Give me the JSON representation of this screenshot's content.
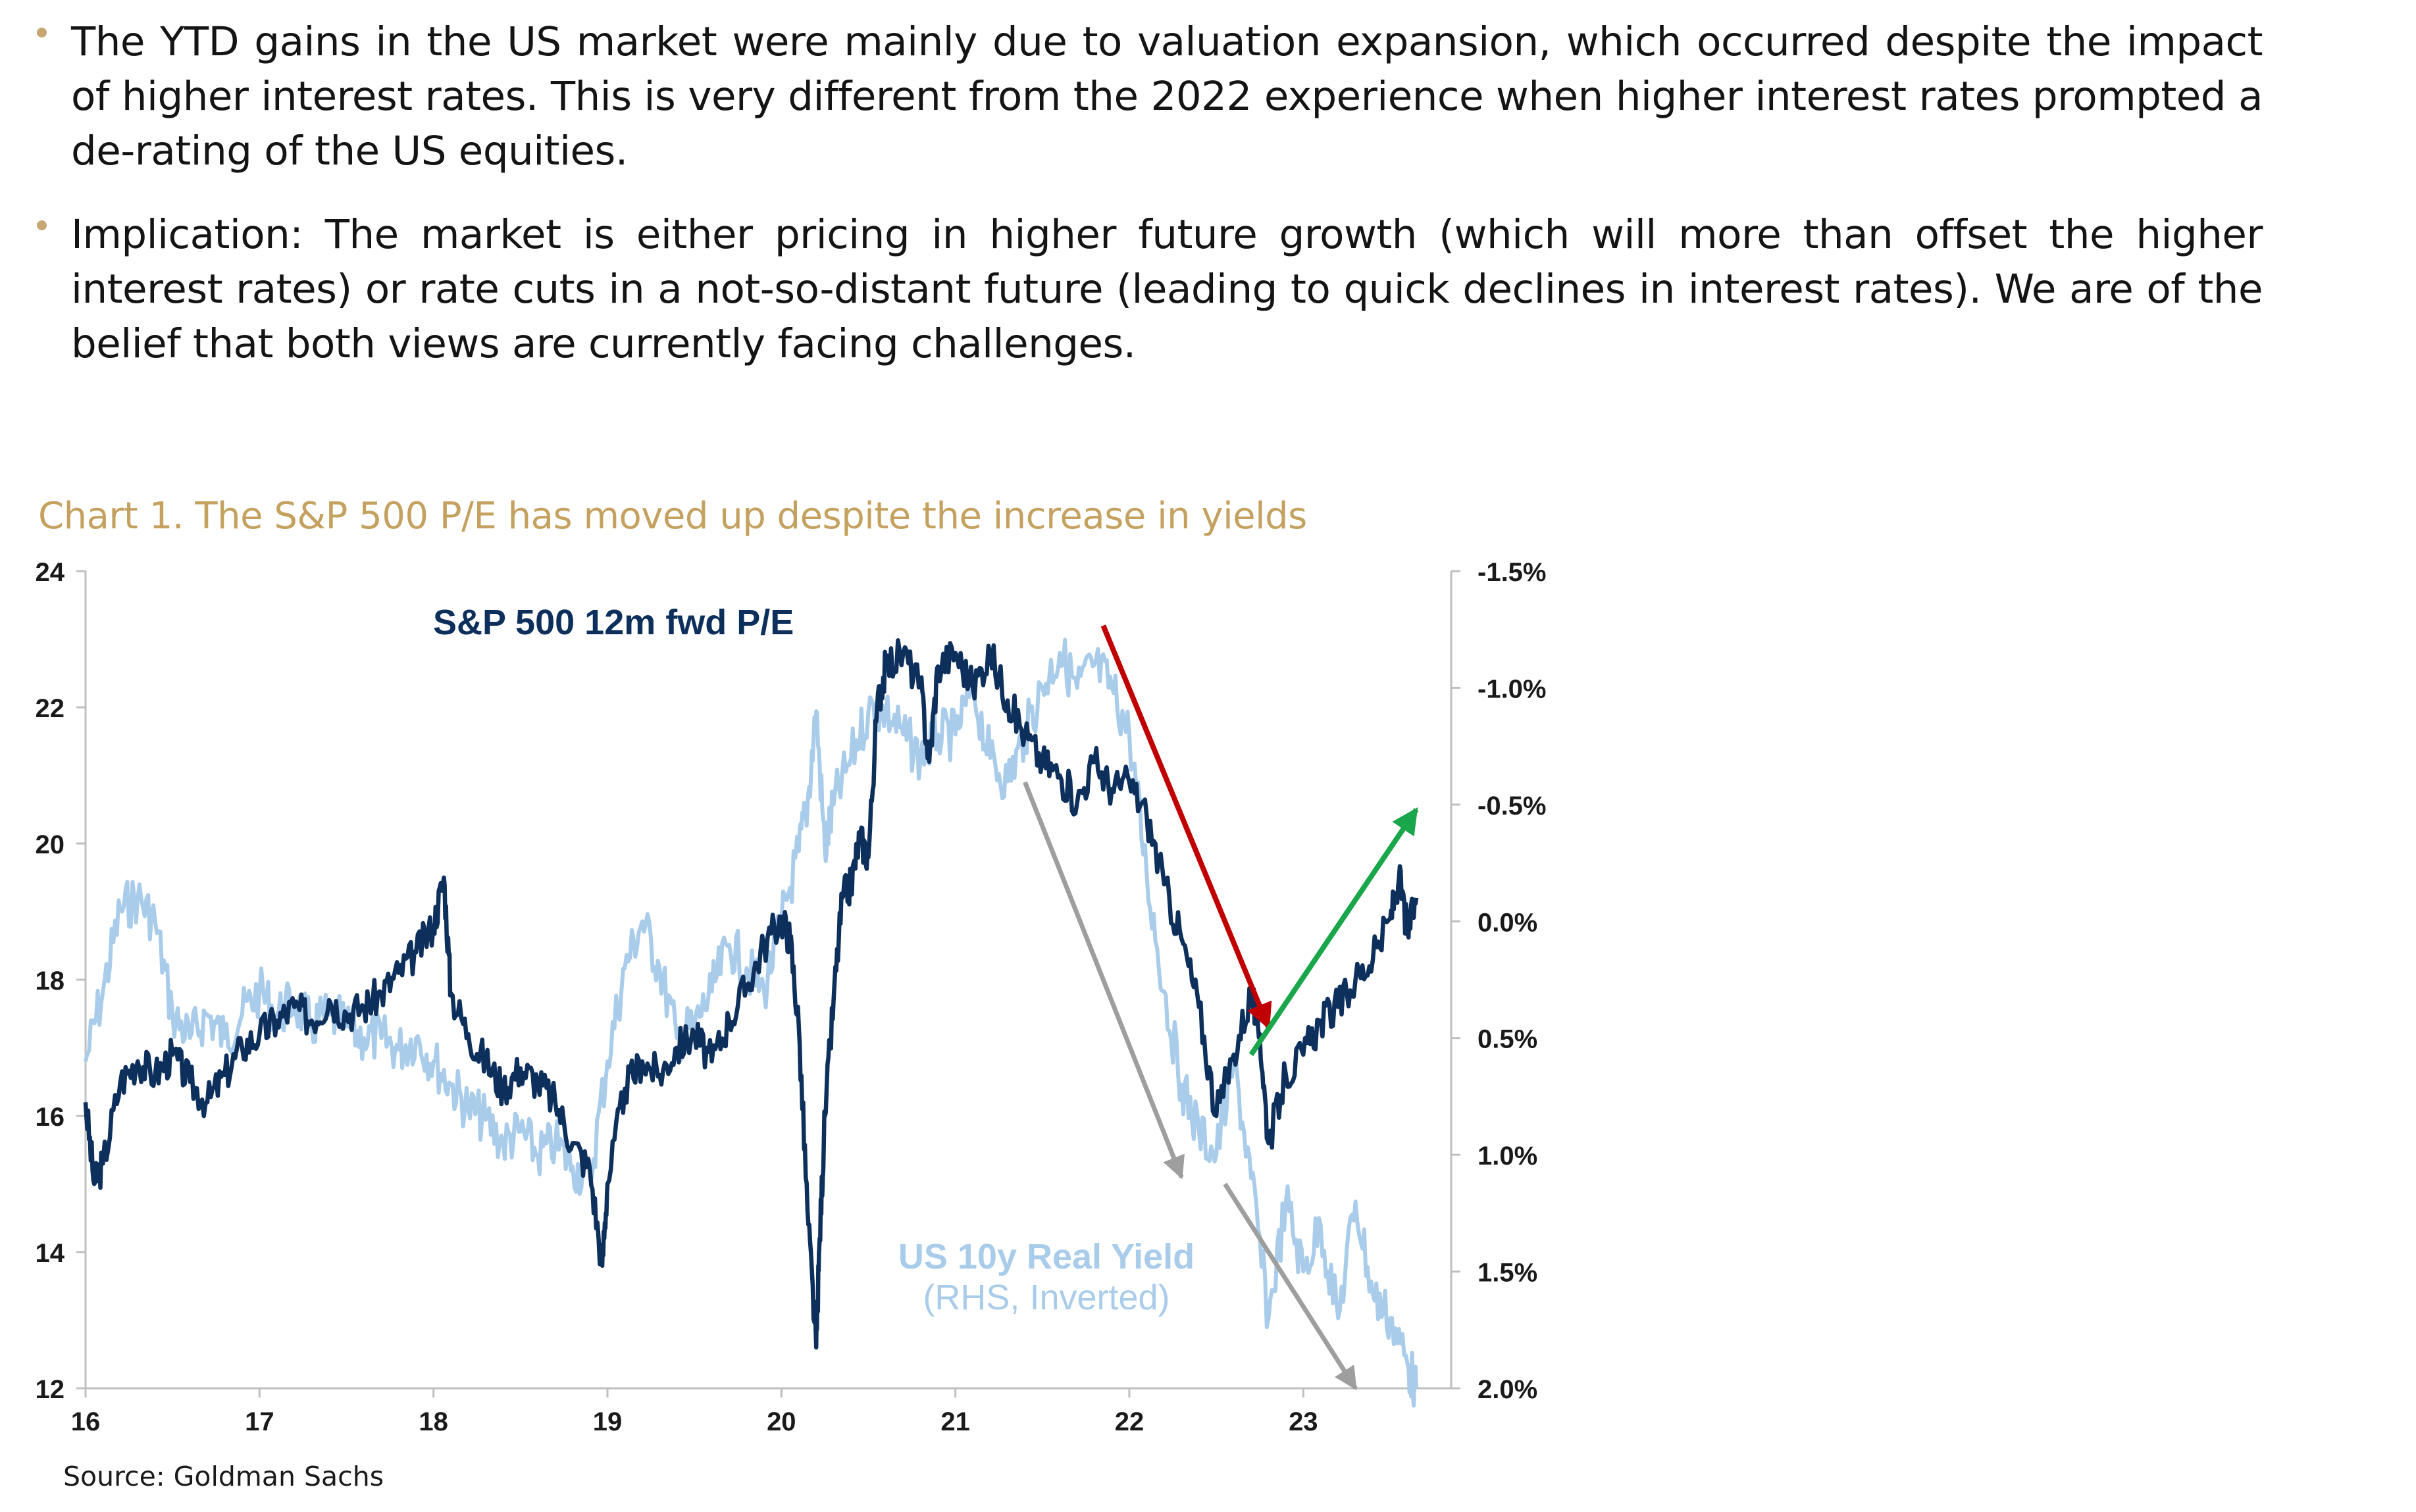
{
  "bullets": [
    "The YTD gains in the US market were mainly due to valuation expansion, which occurred despite the impact of higher interest rates. This is very different from the 2022 experience when higher interest rates prompted a de-rating of the US equities.",
    "Implication: The market is either pricing in higher future growth (which will more than offset the higher interest rates) or rate cuts in a not-so-distant future (leading to quick declines in interest rates). We are of the belief that both views are currently facing challenges."
  ],
  "colors": {
    "bullet": "#c6a772",
    "title": "#c4a15f",
    "pe_series": "#0d2f5c",
    "yield_series": "#a9cceb",
    "arrow_red": "#c00000",
    "arrow_green": "#1aa64a",
    "arrow_gray": "#9e9e9e"
  },
  "source": "Source: Goldman Sachs",
  "chart_data": {
    "type": "line",
    "title": "Chart 1. The S&P 500 P/E has moved up despite the increase in yields",
    "xlabel": "",
    "ylabel_left": "",
    "ylabel_right": "",
    "xlim": [
      16,
      23.85
    ],
    "ylim_left": [
      12,
      24
    ],
    "ylim_right_inverted": [
      2.0,
      -1.5
    ],
    "x_ticks": [
      "16",
      "17",
      "18",
      "19",
      "20",
      "21",
      "22",
      "23"
    ],
    "y_ticks_left": [
      "24",
      "22",
      "20",
      "18",
      "16",
      "14",
      "12"
    ],
    "y_ticks_right": [
      "-1.5%",
      "-1.0%",
      "-0.5%",
      "0.0%",
      "0.5%",
      "1.0%",
      "1.5%",
      "2.0%"
    ],
    "series": [
      {
        "name": "S&P 500 12m fwd P/E",
        "axis": "left",
        "label": "S&P 500 12m fwd P/E",
        "x": [
          16.0,
          16.05,
          16.1,
          16.2,
          16.3,
          16.4,
          16.5,
          16.6,
          16.7,
          16.8,
          16.9,
          17.0,
          17.1,
          17.2,
          17.3,
          17.4,
          17.5,
          17.6,
          17.7,
          17.8,
          17.9,
          18.0,
          18.06,
          18.1,
          18.2,
          18.3,
          18.4,
          18.5,
          18.6,
          18.7,
          18.8,
          18.9,
          18.97,
          19.0,
          19.1,
          19.2,
          19.3,
          19.4,
          19.5,
          19.6,
          19.7,
          19.8,
          19.9,
          20.0,
          20.05,
          20.1,
          20.15,
          20.2,
          20.22,
          20.25,
          20.3,
          20.35,
          20.4,
          20.45,
          20.5,
          20.55,
          20.6,
          20.7,
          20.8,
          20.85,
          20.9,
          21.0,
          21.1,
          21.2,
          21.3,
          21.4,
          21.5,
          21.6,
          21.7,
          21.8,
          21.9,
          22.0,
          22.1,
          22.2,
          22.3,
          22.4,
          22.5,
          22.6,
          22.7,
          22.75,
          22.8,
          22.9,
          23.0,
          23.1,
          23.2,
          23.3,
          23.4,
          23.5,
          23.55,
          23.6,
          23.65
        ],
        "values": [
          16.2,
          15.0,
          15.3,
          16.5,
          16.8,
          16.6,
          16.9,
          16.5,
          16.2,
          16.6,
          17.0,
          17.2,
          17.4,
          17.6,
          17.4,
          17.7,
          17.5,
          17.6,
          17.8,
          18.1,
          18.4,
          18.8,
          19.5,
          17.8,
          17.2,
          16.8,
          16.4,
          16.7,
          16.5,
          16.2,
          15.6,
          15.2,
          13.8,
          15.0,
          16.4,
          16.8,
          16.6,
          17.0,
          17.2,
          16.8,
          17.4,
          17.9,
          18.5,
          18.9,
          18.6,
          17.3,
          14.6,
          12.6,
          14.2,
          16.0,
          17.7,
          19.2,
          19.4,
          20.1,
          19.8,
          22.0,
          22.6,
          22.8,
          22.3,
          21.2,
          22.6,
          22.8,
          22.3,
          22.8,
          22.1,
          21.6,
          21.2,
          21.0,
          20.6,
          21.2,
          20.8,
          20.9,
          20.4,
          19.4,
          18.6,
          17.6,
          16.0,
          16.9,
          17.8,
          17.2,
          15.6,
          16.6,
          16.9,
          17.4,
          17.6,
          18.0,
          18.3,
          18.9,
          19.5,
          18.7,
          19.2
        ]
      },
      {
        "name": "US 10y Real Yield (RHS, Inverted)",
        "axis": "right",
        "label": "US 10y Real Yield",
        "label_sub": "(RHS, Inverted)",
        "x": [
          16.0,
          16.1,
          16.2,
          16.3,
          16.4,
          16.5,
          16.6,
          16.7,
          16.8,
          16.9,
          17.0,
          17.1,
          17.2,
          17.3,
          17.4,
          17.5,
          17.6,
          17.7,
          17.8,
          17.9,
          18.0,
          18.1,
          18.2,
          18.3,
          18.4,
          18.5,
          18.6,
          18.7,
          18.8,
          18.9,
          19.0,
          19.1,
          19.2,
          19.3,
          19.4,
          19.5,
          19.6,
          19.7,
          19.8,
          19.9,
          20.0,
          20.1,
          20.15,
          20.2,
          20.25,
          20.3,
          20.4,
          20.5,
          20.6,
          20.7,
          20.8,
          20.9,
          21.0,
          21.1,
          21.2,
          21.3,
          21.4,
          21.5,
          21.6,
          21.7,
          21.8,
          21.9,
          22.0,
          22.1,
          22.2,
          22.3,
          22.4,
          22.5,
          22.6,
          22.7,
          22.8,
          22.9,
          23.0,
          23.1,
          23.2,
          23.3,
          23.4,
          23.5,
          23.6,
          23.65
        ],
        "values": [
          0.6,
          0.3,
          -0.05,
          -0.1,
          0.0,
          0.4,
          0.5,
          0.4,
          0.5,
          0.4,
          0.3,
          0.4,
          0.35,
          0.45,
          0.4,
          0.45,
          0.5,
          0.5,
          0.55,
          0.5,
          0.6,
          0.7,
          0.8,
          0.85,
          0.95,
          0.9,
          1.0,
          0.95,
          1.05,
          1.1,
          0.6,
          0.2,
          0.0,
          0.2,
          0.5,
          0.45,
          0.3,
          0.1,
          0.2,
          0.3,
          0.0,
          -0.3,
          -0.5,
          -0.9,
          -0.3,
          -0.5,
          -0.7,
          -0.9,
          -0.9,
          -0.8,
          -0.7,
          -0.8,
          -0.8,
          -1.0,
          -0.7,
          -0.6,
          -0.8,
          -1.0,
          -1.15,
          -1.0,
          -1.1,
          -1.0,
          -0.8,
          -0.2,
          0.3,
          0.7,
          0.9,
          1.0,
          0.6,
          1.1,
          1.7,
          1.2,
          1.5,
          1.3,
          1.7,
          1.2,
          1.6,
          1.7,
          1.9,
          2.0
        ]
      }
    ],
    "annotations": [
      {
        "type": "arrow",
        "color": "red",
        "from": [
          21.85,
          23.2
        ],
        "to": [
          22.8,
          17.3
        ]
      },
      {
        "type": "arrow",
        "color": "green",
        "from": [
          22.7,
          16.9
        ],
        "to": [
          23.65,
          20.5
        ]
      },
      {
        "type": "arrow",
        "color": "gray",
        "from": [
          21.4,
          20.9
        ],
        "to": [
          22.3,
          15.1
        ]
      },
      {
        "type": "arrow",
        "color": "gray",
        "from": [
          22.55,
          15.0
        ],
        "to": [
          23.3,
          12.0
        ]
      }
    ]
  }
}
